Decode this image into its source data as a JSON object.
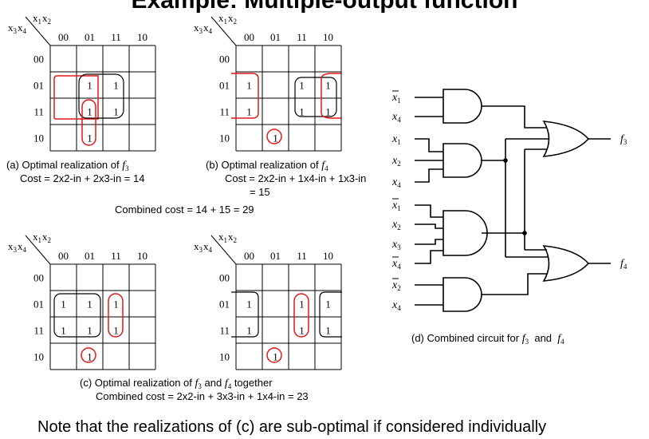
{
  "title": "Example: Multiple-output function",
  "kmap_headers": {
    "corner_top": [
      "x",
      "1",
      "x",
      "2"
    ],
    "corner_left": [
      "x",
      "3",
      "x",
      "4"
    ],
    "col_labels": [
      "00",
      "01",
      "11",
      "10"
    ],
    "row_labels": [
      "00",
      "01",
      "11",
      "10"
    ]
  },
  "kmaps": [
    {
      "id": "a",
      "cells": [
        [
          0,
          0,
          0,
          0
        ],
        [
          0,
          1,
          1,
          0
        ],
        [
          0,
          1,
          1,
          0
        ],
        [
          0,
          1,
          0,
          0
        ]
      ],
      "caption_lines": [
        {
          "pre": "(a) Optimal realization of ",
          "var": "f",
          "sub": "3",
          "post": ""
        },
        {
          "pre": "Cost = 2x2-in + 2x3-in = 14",
          "var": "",
          "sub": "",
          "post": ""
        }
      ]
    },
    {
      "id": "b",
      "cells": [
        [
          0,
          0,
          0,
          0
        ],
        [
          1,
          0,
          1,
          1
        ],
        [
          1,
          0,
          1,
          1
        ],
        [
          0,
          1,
          0,
          0
        ]
      ],
      "caption_lines": [
        {
          "pre": "(b) Optimal realization of ",
          "var": "f",
          "sub": "4",
          "post": ""
        },
        {
          "pre": "Cost = 2x2-in + 1x4-in + 1x3-in",
          "var": "",
          "sub": "",
          "post": ""
        },
        {
          "pre": "= 15",
          "var": "",
          "sub": "",
          "post": ""
        }
      ]
    },
    {
      "id": "c1",
      "cells": [
        [
          0,
          0,
          0,
          0
        ],
        [
          1,
          1,
          1,
          0
        ],
        [
          1,
          1,
          1,
          0
        ],
        [
          0,
          1,
          0,
          0
        ]
      ],
      "caption_lines": []
    },
    {
      "id": "c2",
      "cells": [
        [
          0,
          0,
          0,
          0
        ],
        [
          1,
          0,
          1,
          1
        ],
        [
          1,
          0,
          1,
          1
        ],
        [
          0,
          1,
          0,
          0
        ]
      ],
      "caption_lines": []
    }
  ],
  "combined_cost_ab": "Combined cost = 14 + 15 = 29",
  "caption_c": {
    "line1_pre": "(c) Optimal realization of ",
    "f": "f",
    "sub1": "3",
    "and": " and ",
    "sub2": "4",
    "line1_post": " together",
    "line2": "Combined cost = 2x2-in + 3x3-in + 1x4-in = 23"
  },
  "circuit": {
    "inputs": [
      {
        "var": "x",
        "sub": "1",
        "bar": true
      },
      {
        "var": "x",
        "sub": "4",
        "bar": false
      },
      {
        "var": "x",
        "sub": "1",
        "bar": false
      },
      {
        "var": "x",
        "sub": "2",
        "bar": false
      },
      {
        "var": "x",
        "sub": "4",
        "bar": false
      },
      {
        "var": "x",
        "sub": "1",
        "bar": true
      },
      {
        "var": "x",
        "sub": "2",
        "bar": false
      },
      {
        "var": "x",
        "sub": "3",
        "bar": false
      },
      {
        "var": "x",
        "sub": "4",
        "bar": true
      },
      {
        "var": "x",
        "sub": "2",
        "bar": true
      },
      {
        "var": "x",
        "sub": "4",
        "bar": false
      }
    ],
    "outputs": [
      {
        "var": "f",
        "sub": "3"
      },
      {
        "var": "f",
        "sub": "4"
      }
    ],
    "caption": {
      "pre": "(d) Combined circuit for ",
      "f": "f",
      "sub1": "3",
      "and": "  and  ",
      "sub2": "4"
    }
  },
  "note": "Note that the realizations of (c) are sub-optimal if considered individually",
  "colors": {
    "loop_red": "#e01818",
    "loop_black": "#000000"
  }
}
